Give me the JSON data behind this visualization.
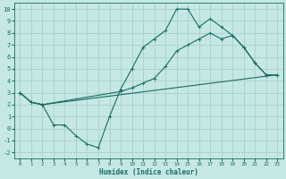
{
  "xlabel": "Humidex (Indice chaleur)",
  "bg_color": "#c5e8e5",
  "grid_color": "#a8d0cc",
  "line_color": "#1a6b60",
  "line1_x": [
    0,
    1,
    2,
    3,
    4,
    5,
    6,
    7,
    8,
    9,
    10,
    11,
    12,
    13,
    14,
    15,
    16,
    17,
    18,
    19,
    20,
    21,
    22,
    23
  ],
  "line1_y": [
    3.0,
    2.2,
    2.0,
    0.3,
    0.3,
    -0.6,
    -1.3,
    -1.6,
    1.0,
    3.3,
    5.0,
    6.8,
    7.5,
    8.2,
    10.0,
    10.0,
    8.5,
    9.2,
    8.5,
    7.8,
    6.8,
    5.5,
    4.5,
    4.5
  ],
  "line2_x": [
    0,
    1,
    2,
    9,
    10,
    11,
    12,
    13,
    14,
    15,
    16,
    17,
    18,
    19,
    20,
    21,
    22,
    23
  ],
  "line2_y": [
    3.0,
    2.2,
    2.0,
    3.1,
    3.4,
    3.8,
    4.2,
    5.2,
    6.5,
    7.0,
    7.5,
    8.0,
    7.5,
    7.8,
    6.8,
    5.5,
    4.5,
    4.5
  ],
  "line3_x": [
    0,
    1,
    2,
    23
  ],
  "line3_y": [
    3.0,
    2.2,
    2.0,
    4.5
  ],
  "xlim": [
    -0.5,
    23.5
  ],
  "ylim": [
    -2.5,
    10.5
  ],
  "yticks": [
    -2,
    -1,
    0,
    1,
    2,
    3,
    4,
    5,
    6,
    7,
    8,
    9,
    10
  ],
  "xticks": [
    0,
    1,
    2,
    3,
    4,
    5,
    6,
    7,
    8,
    9,
    10,
    11,
    12,
    13,
    14,
    15,
    16,
    17,
    18,
    19,
    20,
    21,
    22,
    23
  ]
}
